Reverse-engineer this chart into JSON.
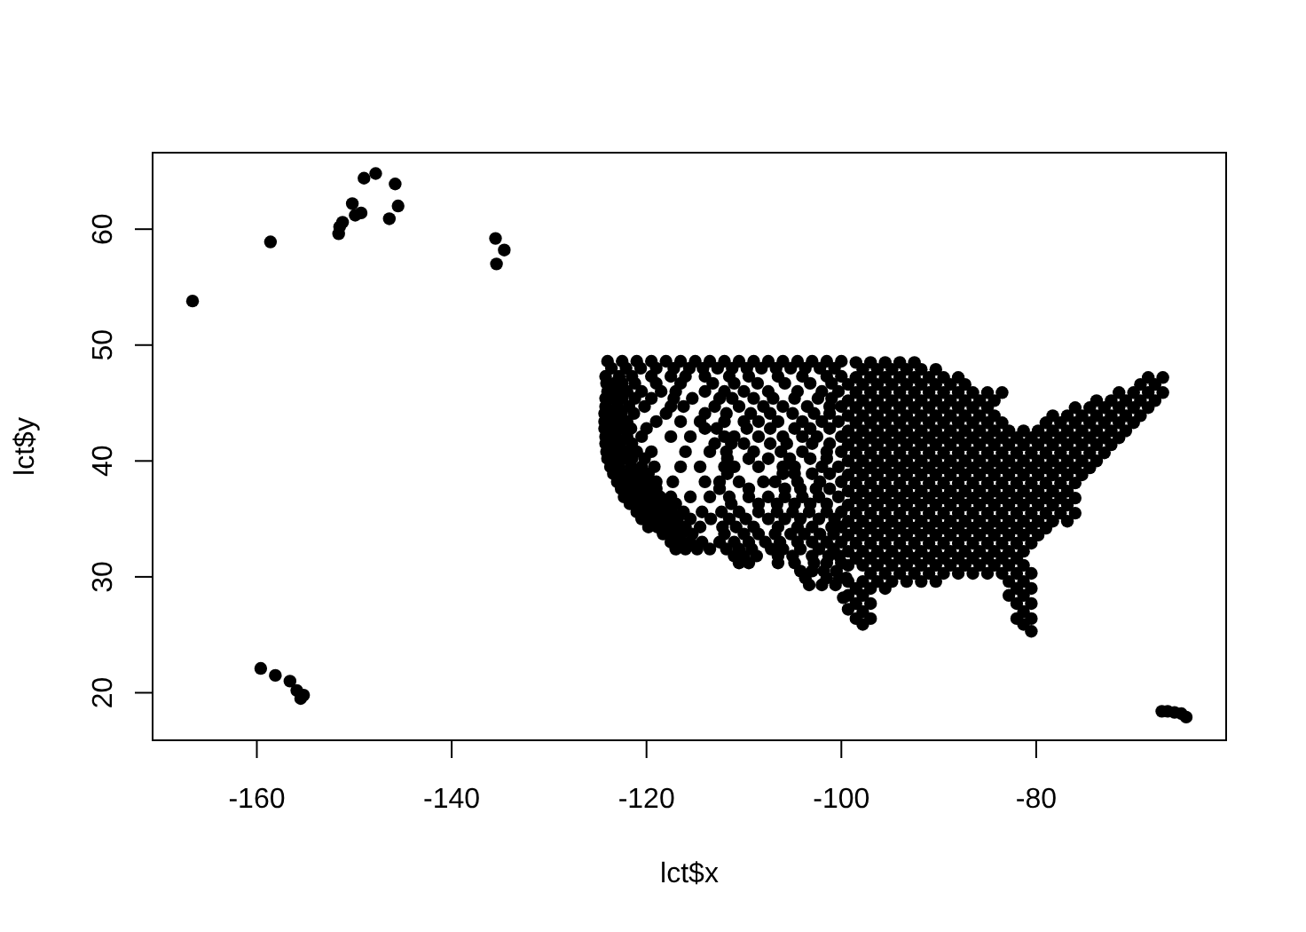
{
  "chart_data": {
    "type": "scatter",
    "xlabel": "lct$x",
    "ylabel": "lct$y",
    "xlim": [
      -170.7,
      -60.5
    ],
    "ylim": [
      15.9,
      66.6
    ],
    "xticks": [
      -160,
      -140,
      -120,
      -100,
      -80
    ],
    "yticks": [
      20,
      30,
      40,
      50,
      60
    ],
    "color": "#000000",
    "marker": "circle",
    "x": [
      -166.6,
      -158.6,
      -151.6,
      -151.5,
      -151.2,
      -150.2,
      -149.9,
      -149.3,
      -149.0,
      -147.8,
      -145.8,
      -145.5,
      -146.4,
      -135.5,
      -134.6,
      -135.4,
      -159.6,
      -158.1,
      -156.6,
      -155.9,
      -155.5,
      -155.2,
      -67.1,
      -66.5,
      -65.8,
      -65.1,
      -64.6,
      -124,
      -122.5,
      -121,
      -119.5,
      -118,
      -116.5,
      -115,
      -113.5,
      -112,
      -110.5,
      -109,
      -107.5,
      -106,
      -104.5,
      -103,
      -101.5,
      -100,
      -124.2,
      -122.8,
      -121.5,
      -119.5,
      -117.5,
      -116,
      -114,
      -111.5,
      -109.5,
      -106.5,
      -104,
      -101.5,
      -100,
      -124,
      -123,
      -122,
      -120.5,
      -118.5,
      -117,
      -114,
      -112,
      -110,
      -107.5,
      -104.5,
      -102,
      -100.3,
      -124.2,
      -123,
      -121.8,
      -120.2,
      -117.5,
      -116.2,
      -113,
      -110.5,
      -108,
      -106,
      -103.5,
      -101.2,
      -100,
      -124.3,
      -123.2,
      -122,
      -119,
      -116.5,
      -114.5,
      -112,
      -110,
      -108.5,
      -106.5,
      -104,
      -102,
      -100.3,
      -124.2,
      -123.2,
      -122,
      -120.5,
      -117.5,
      -115.5,
      -112,
      -111,
      -108.5,
      -106,
      -104,
      -102.5,
      -100,
      -124.1,
      -123.2,
      -122.2,
      -121,
      -119.5,
      -116,
      -113.5,
      -111.8,
      -109,
      -106.2,
      -104,
      -101.5,
      -100,
      -123.7,
      -122.8,
      -121.6,
      -120.5,
      -119.2,
      -116.5,
      -114.5,
      -112,
      -111,
      -108.5,
      -106,
      -104.8,
      -102,
      -100.3,
      -123,
      -122.1,
      -121.2,
      -120.2,
      -119,
      -117.3,
      -114,
      -112.5,
      -110.5,
      -108,
      -106.8,
      -104.5,
      -102.2,
      -100,
      -122.3,
      -121.4,
      -120.5,
      -119.6,
      -118.6,
      -117.5,
      -115.5,
      -113.5,
      -111.5,
      -109.5,
      -107.5,
      -105.8,
      -104,
      -102.3,
      -100.3,
      -121,
      -120.2,
      -119.3,
      -118.4,
      -117.4,
      -116.2,
      -114.3,
      -112.3,
      -110.5,
      -108.5,
      -106.6,
      -105,
      -103.3,
      -101.5,
      -100,
      -119.8,
      -118.9,
      -118,
      -117,
      -116,
      -114.5,
      -112.2,
      -110.8,
      -109,
      -106.5,
      -104.5,
      -103,
      -101,
      -100,
      -117.5,
      -116.5,
      -115.5,
      -114.3,
      -112.5,
      -111,
      -109.5,
      -107.8,
      -106.3,
      -104.5,
      -103,
      -101.5,
      -100,
      -111,
      -110,
      -108.7,
      -106.5,
      -105,
      -103,
      -101.3,
      -100.2,
      -104.2,
      -103,
      -101.8,
      -100.5,
      -103.3,
      -102,
      -100.6,
      -99.8,
      -99.3,
      -123.6,
      -122.1,
      -120.6,
      -119.0,
      -117.2,
      -115.6,
      -114.2,
      -112.7,
      -111.2,
      -109.7,
      -108.2,
      -106.7,
      -105.2,
      -103.7,
      -102.2,
      -100.7,
      -124.1,
      -123.3,
      -122.5,
      -121.2,
      -119.0,
      -116.5,
      -113.2,
      -111,
      -108.6,
      -105.8,
      -103.2,
      -101,
      -124.2,
      -123.4,
      -122.5,
      -121.2,
      -119.5,
      -117.2,
      -115.3,
      -112.5,
      -111.2,
      -109,
      -107,
      -104.8,
      -102.4,
      -101,
      -124.3,
      -123.5,
      -122.6,
      -121.3,
      -118,
      -114,
      -111.8,
      -109.3,
      -107.3,
      -105,
      -102.8,
      -101.2,
      -124.3,
      -123.6,
      -122.7,
      -121.6,
      -120,
      -114,
      -112.8,
      -109.7,
      -107.3,
      -104.8,
      -103.2,
      -101.2,
      -124.2,
      -123.6,
      -122.7,
      -121.5,
      -113,
      -111.3,
      -110,
      -107.3,
      -105.6,
      -103,
      -101.2,
      -124,
      -123.3,
      -122.4,
      -121.5,
      -120.2,
      -111.7,
      -109.5,
      -107.5,
      -105.3,
      -103.2,
      -101.5,
      -123.4,
      -122.5,
      -121.7,
      -120.8,
      -119.8,
      -111.7,
      -106,
      -104.8,
      -103,
      -101.2,
      -122.6,
      -121.8,
      -121,
      -120,
      -119,
      -112.5,
      -109.5,
      -105.8,
      -104.2,
      -102.6,
      -101.2,
      -121.7,
      -120.9,
      -120,
      -119,
      -118.1,
      -117,
      -111.3,
      -108.5,
      -106.6,
      -104.8,
      -103.2,
      -101.5,
      -120.5,
      -119.7,
      -118.8,
      -117.8,
      -116.8,
      -115.5,
      -113.4,
      -111.5,
      -109.8,
      -107.5,
      -105.8,
      -104.2,
      -102.3,
      -100.7,
      -118.3,
      -117.4,
      -116.4,
      -115.3,
      -112,
      -110,
      -108.5,
      -106.8,
      -105.2,
      -103.8,
      -102.2,
      -100.8,
      -117,
      -116,
      -114.8,
      -113.5,
      -111.8,
      -110.5,
      -109.2,
      -107.2,
      -106,
      -104.2,
      -102.3,
      -100.8,
      -110.5,
      -109.5,
      -106.5,
      -104.8,
      -102.8,
      -101.5,
      -100,
      -103.7,
      -101.5,
      -100.2,
      -99.5,
      -98.5,
      -97,
      -95.5,
      -94,
      -92.5,
      -97.8,
      -96.3,
      -94.8,
      -93.3,
      -91.8,
      -90.3,
      -98.5,
      -97,
      -95.5,
      -94,
      -92.5,
      -91,
      -89.5,
      -88,
      -68.5,
      -67,
      -99.3,
      -97.8,
      -96.3,
      -94.8,
      -93.3,
      -91.8,
      -90.3,
      -88.8,
      -87.3,
      -69.3,
      -67.8,
      -98.5,
      -97,
      -95.5,
      -94,
      -92.5,
      -91,
      -89.5,
      -88,
      -86.5,
      -85,
      -83.5,
      -71.5,
      -70,
      -68.5,
      -67,
      -99.3,
      -97.8,
      -96.3,
      -94.8,
      -93.3,
      -91.8,
      -90.3,
      -88.8,
      -87.3,
      -85.8,
      -84.3,
      -73.8,
      -72.3,
      -70.8,
      -69.3,
      -67.8,
      -98.5,
      -97,
      -95.5,
      -94,
      -92.5,
      -91,
      -89.5,
      -88,
      -86.5,
      -85,
      -76,
      -74.5,
      -73,
      -71.5,
      -70,
      -68.5,
      -99.3,
      -97.8,
      -96.3,
      -94.8,
      -93.3,
      -91.8,
      -90.3,
      -88.8,
      -87.3,
      -85.8,
      -84.3,
      -78.3,
      -76.8,
      -75.3,
      -73.8,
      -72.3,
      -70.8,
      -69.3,
      -98.5,
      -97,
      -95.5,
      -94,
      -92.5,
      -91,
      -89.5,
      -88,
      -86.5,
      -85,
      -83.5,
      -79,
      -77.5,
      -76,
      -74.5,
      -73,
      -71.5,
      -70,
      -99.3,
      -97.8,
      -96.3,
      -94.8,
      -93.3,
      -91.8,
      -90.3,
      -88.8,
      -87.3,
      -85.8,
      -84.3,
      -82.8,
      -81.3,
      -79.8,
      -78.3,
      -76.8,
      -75.3,
      -73.8,
      -72.3,
      -70.8,
      -98.5,
      -97,
      -95.5,
      -94,
      -92.5,
      -91,
      -89.5,
      -88,
      -86.5,
      -85,
      -83.5,
      -82,
      -80.5,
      -79,
      -77.5,
      -76,
      -74.5,
      -73,
      -71.5,
      -99.3,
      -97.8,
      -96.3,
      -94.8,
      -93.3,
      -91.8,
      -90.3,
      -88.8,
      -87.3,
      -85.8,
      -84.3,
      -82.8,
      -81.3,
      -79.8,
      -78.3,
      -76.8,
      -75.3,
      -73.8,
      -72.3,
      -98.5,
      -97,
      -95.5,
      -94,
      -92.5,
      -91,
      -89.5,
      -88,
      -86.5,
      -85,
      -83.5,
      -82,
      -80.5,
      -79,
      -77.5,
      -76,
      -74.5,
      -73,
      -99.3,
      -97.8,
      -96.3,
      -94.8,
      -93.3,
      -91.8,
      -90.3,
      -88.8,
      -87.3,
      -85.8,
      -84.3,
      -82.8,
      -81.3,
      -79.8,
      -78.3,
      -76.8,
      -75.3,
      -73.8,
      -98.5,
      -97,
      -95.5,
      -94,
      -92.5,
      -91,
      -89.5,
      -88,
      -86.5,
      -85,
      -83.5,
      -82,
      -80.5,
      -79,
      -77.5,
      -76,
      -74.5,
      -99.3,
      -97.8,
      -96.3,
      -94.8,
      -93.3,
      -91.8,
      -90.3,
      -88.8,
      -87.3,
      -85.8,
      -84.3,
      -82.8,
      -81.3,
      -79.8,
      -78.3,
      -76.8,
      -75.3,
      -98.5,
      -97,
      -95.5,
      -94,
      -92.5,
      -91,
      -89.5,
      -88,
      -86.5,
      -85,
      -83.5,
      -82,
      -80.5,
      -79,
      -77.5,
      -76,
      -99.3,
      -97.8,
      -96.3,
      -94.8,
      -93.3,
      -91.8,
      -90.3,
      -88.8,
      -87.3,
      -85.8,
      -84.3,
      -82.8,
      -81.3,
      -79.8,
      -78.3,
      -76.8,
      -98.5,
      -97,
      -95.5,
      -94,
      -92.5,
      -91,
      -89.5,
      -88,
      -86.5,
      -85,
      -83.5,
      -82,
      -80.5,
      -79,
      -77.5,
      -76,
      -99.3,
      -97.8,
      -96.3,
      -94.8,
      -93.3,
      -91.8,
      -90.3,
      -88.8,
      -87.3,
      -85.8,
      -84.3,
      -82.8,
      -81.3,
      -79.8,
      -78.3,
      -76.8,
      -98.5,
      -97,
      -95.5,
      -94,
      -92.5,
      -91,
      -89.5,
      -88,
      -86.5,
      -85,
      -83.5,
      -82,
      -80.5,
      -79,
      -77.5,
      -76,
      -99.3,
      -97.8,
      -96.3,
      -94.8,
      -93.3,
      -91.8,
      -90.3,
      -88.8,
      -87.3,
      -85.8,
      -84.3,
      -82.8,
      -81.3,
      -79.8,
      -78.3,
      -76.8,
      -98.5,
      -97,
      -95.5,
      -94,
      -92.5,
      -91,
      -89.5,
      -88,
      -86.5,
      -85,
      -83.5,
      -82,
      -80.5,
      -79,
      -99.3,
      -97.8,
      -96.3,
      -94.8,
      -93.3,
      -91.8,
      -90.3,
      -88.8,
      -87.3,
      -85.8,
      -84.3,
      -82.8,
      -81.3,
      -79.8,
      -98.5,
      -97,
      -95.5,
      -94,
      -92.5,
      -91,
      -89.5,
      -88,
      -86.5,
      -85,
      -83.5,
      -82,
      -80.5,
      -99.3,
      -97.8,
      -96.3,
      -94.8,
      -93.3,
      -91.8,
      -90.3,
      -88.8,
      -87.3,
      -85.8,
      -84.3,
      -82.8,
      -81.3,
      -98.5,
      -97,
      -95.5,
      -94,
      -92.5,
      -91,
      -89.5,
      -88,
      -86.5,
      -85,
      -83.5,
      -82,
      -99.3,
      -97.8,
      -96.3,
      -94.8,
      -93.3,
      -91.8,
      -90.3,
      -88.8,
      -87.3,
      -85.8,
      -84.3,
      -82.8,
      -81.3,
      -97,
      -95.5,
      -94,
      -92.5,
      -91,
      -89.5,
      -88,
      -86.5,
      -85,
      -83.5,
      -82,
      -80.5,
      -99.3,
      -97.8,
      -96.3,
      -94.8,
      -93.3,
      -91.8,
      -90.3,
      -82.8,
      -81.3,
      -98.5,
      -97,
      -95.5,
      -82,
      -80.5,
      -99.3,
      -97.8,
      -82.8,
      -81.3,
      -98.5,
      -97,
      -82,
      -80.5,
      -97.8,
      -81.3,
      -98.5,
      -97,
      -82,
      -80.5,
      -97.8,
      -81.3,
      -80.5
    ],
    "values": [
      53.8,
      58.9,
      59.6,
      60.2,
      60.6,
      62.2,
      61.2,
      61.4,
      64.4,
      64.8,
      63.9,
      62.0,
      60.9,
      59.2,
      58.2,
      57.0,
      22.1,
      21.5,
      21.0,
      20.2,
      19.5,
      19.8,
      18.4,
      18.4,
      18.3,
      18.2,
      17.9,
      48.6,
      48.6,
      48.6,
      48.6,
      48.6,
      48.6,
      48.6,
      48.6,
      48.6,
      48.6,
      48.6,
      48.6,
      48.6,
      48.6,
      48.6,
      48.6,
      48.6,
      47.3,
      47.3,
      47.3,
      47.3,
      47.3,
      47.3,
      47.3,
      47.3,
      47.3,
      47.3,
      47.3,
      47.3,
      47.3,
      46.0,
      46.0,
      46.0,
      46.0,
      46.0,
      46.0,
      46.0,
      46.0,
      46.0,
      46.0,
      46.0,
      46.0,
      46.0,
      44.7,
      44.7,
      44.7,
      44.7,
      44.7,
      44.7,
      44.7,
      44.7,
      44.7,
      44.7,
      44.7,
      44.7,
      44.7,
      43.4,
      43.4,
      43.4,
      43.4,
      43.4,
      43.4,
      43.4,
      43.4,
      43.4,
      43.4,
      43.4,
      43.4,
      43.4,
      42.1,
      42.1,
      42.1,
      42.1,
      42.1,
      42.1,
      42.1,
      42.1,
      42.1,
      42.1,
      42.1,
      42.1,
      42.1,
      40.8,
      40.8,
      40.8,
      40.8,
      40.8,
      40.8,
      40.8,
      40.8,
      40.8,
      40.8,
      40.8,
      40.8,
      40.8,
      39.5,
      39.5,
      39.5,
      39.5,
      39.5,
      39.5,
      39.5,
      39.5,
      39.5,
      39.5,
      39.5,
      39.5,
      39.5,
      39.5,
      38.2,
      38.2,
      38.2,
      38.2,
      38.2,
      38.2,
      38.2,
      38.2,
      38.2,
      38.2,
      38.2,
      38.2,
      38.2,
      38.2,
      36.9,
      36.9,
      36.9,
      36.9,
      36.9,
      36.9,
      36.9,
      36.9,
      36.9,
      36.9,
      36.9,
      36.9,
      36.9,
      36.9,
      36.9,
      35.6,
      35.6,
      35.6,
      35.6,
      35.6,
      35.6,
      35.6,
      35.6,
      35.6,
      35.6,
      35.6,
      35.6,
      35.6,
      35.6,
      35.6,
      34.3,
      34.3,
      34.3,
      34.3,
      34.3,
      34.3,
      34.3,
      34.3,
      34.3,
      34.3,
      34.3,
      34.3,
      34.3,
      34.3,
      33.0,
      33.0,
      33.0,
      33.0,
      33.0,
      33.0,
      33.0,
      33.0,
      33.0,
      33.0,
      33.0,
      33.0,
      33.0,
      31.8,
      31.8,
      31.8,
      31.8,
      31.8,
      31.8,
      31.8,
      31.8,
      30.5,
      30.5,
      30.5,
      30.5,
      29.3,
      29.3,
      29.3,
      28.2,
      27.2,
      48.0,
      48.0,
      48.0,
      48.0,
      48.0,
      48.0,
      48.0,
      48.0,
      48.0,
      48.0,
      48.0,
      48.0,
      48.0,
      48.0,
      48.0,
      48.0,
      46.7,
      46.7,
      46.7,
      46.7,
      46.7,
      46.7,
      46.7,
      46.7,
      46.7,
      46.7,
      46.7,
      46.7,
      45.4,
      45.4,
      45.4,
      45.4,
      45.4,
      45.4,
      45.4,
      45.4,
      45.4,
      45.4,
      45.4,
      45.4,
      45.4,
      45.4,
      44.1,
      44.1,
      44.1,
      44.1,
      44.1,
      44.1,
      44.1,
      44.1,
      44.1,
      44.1,
      44.1,
      44.1,
      42.8,
      42.8,
      42.8,
      42.8,
      42.8,
      42.8,
      42.8,
      42.8,
      42.8,
      42.8,
      42.8,
      42.8,
      41.5,
      41.5,
      41.5,
      41.5,
      41.5,
      41.5,
      41.5,
      41.5,
      41.5,
      41.5,
      41.5,
      40.2,
      40.2,
      40.2,
      40.2,
      40.2,
      40.2,
      40.2,
      40.2,
      40.2,
      40.2,
      40.2,
      38.9,
      38.9,
      38.9,
      38.9,
      38.9,
      38.9,
      38.9,
      38.9,
      38.9,
      38.9,
      37.6,
      37.6,
      37.6,
      37.6,
      37.6,
      37.6,
      37.6,
      37.6,
      37.6,
      37.6,
      37.6,
      36.3,
      36.3,
      36.3,
      36.3,
      36.3,
      36.3,
      36.3,
      36.3,
      36.3,
      36.3,
      36.3,
      36.3,
      35.0,
      35.0,
      35.0,
      35.0,
      35.0,
      35.0,
      35.0,
      35.0,
      35.0,
      35.0,
      35.0,
      35.0,
      35.0,
      35.0,
      33.7,
      33.7,
      33.7,
      33.7,
      33.7,
      33.7,
      33.7,
      33.7,
      33.7,
      33.7,
      33.7,
      33.7,
      32.4,
      32.4,
      32.4,
      32.4,
      32.4,
      32.4,
      32.4,
      32.4,
      32.4,
      32.4,
      32.4,
      32.4,
      31.2,
      31.2,
      31.2,
      31.2,
      31.2,
      31.2,
      31.2,
      29.9,
      29.9,
      29.9,
      29.9,
      48.5,
      48.5,
      48.5,
      48.5,
      48.5,
      47.9,
      47.9,
      47.9,
      47.9,
      47.9,
      47.9,
      47.2,
      47.2,
      47.2,
      47.2,
      47.2,
      47.2,
      47.2,
      47.2,
      47.2,
      47.2,
      46.6,
      46.6,
      46.6,
      46.6,
      46.6,
      46.6,
      46.6,
      46.6,
      46.6,
      46.6,
      46.6,
      45.9,
      45.9,
      45.9,
      45.9,
      45.9,
      45.9,
      45.9,
      45.9,
      45.9,
      45.9,
      45.9,
      45.9,
      45.9,
      45.9,
      45.9,
      45.2,
      45.2,
      45.2,
      45.2,
      45.2,
      45.2,
      45.2,
      45.2,
      45.2,
      45.2,
      45.2,
      45.2,
      45.2,
      45.2,
      45.2,
      45.2,
      44.6,
      44.6,
      44.6,
      44.6,
      44.6,
      44.6,
      44.6,
      44.6,
      44.6,
      44.6,
      44.6,
      44.6,
      44.6,
      44.6,
      44.6,
      44.6,
      43.9,
      43.9,
      43.9,
      43.9,
      43.9,
      43.9,
      43.9,
      43.9,
      43.9,
      43.9,
      43.9,
      43.9,
      43.9,
      43.9,
      43.9,
      43.9,
      43.9,
      43.9,
      43.3,
      43.3,
      43.3,
      43.3,
      43.3,
      43.3,
      43.3,
      43.3,
      43.3,
      43.3,
      43.3,
      43.3,
      43.3,
      43.3,
      43.3,
      43.3,
      43.3,
      43.3,
      42.6,
      42.6,
      42.6,
      42.6,
      42.6,
      42.6,
      42.6,
      42.6,
      42.6,
      42.6,
      42.6,
      42.6,
      42.6,
      42.6,
      42.6,
      42.6,
      42.6,
      42.6,
      42.6,
      42.6,
      42.0,
      42.0,
      42.0,
      42.0,
      42.0,
      42.0,
      42.0,
      42.0,
      42.0,
      42.0,
      42.0,
      42.0,
      42.0,
      42.0,
      42.0,
      42.0,
      42.0,
      42.0,
      42.0,
      41.4,
      41.4,
      41.4,
      41.4,
      41.4,
      41.4,
      41.4,
      41.4,
      41.4,
      41.4,
      41.4,
      41.4,
      41.4,
      41.4,
      41.4,
      41.4,
      41.4,
      41.4,
      41.4,
      40.7,
      40.7,
      40.7,
      40.7,
      40.7,
      40.7,
      40.7,
      40.7,
      40.7,
      40.7,
      40.7,
      40.7,
      40.7,
      40.7,
      40.7,
      40.7,
      40.7,
      40.7,
      40.0,
      40.0,
      40.0,
      40.0,
      40.0,
      40.0,
      40.0,
      40.0,
      40.0,
      40.0,
      40.0,
      40.0,
      40.0,
      40.0,
      40.0,
      40.0,
      40.0,
      40.0,
      39.4,
      39.4,
      39.4,
      39.4,
      39.4,
      39.4,
      39.4,
      39.4,
      39.4,
      39.4,
      39.4,
      39.4,
      39.4,
      39.4,
      39.4,
      39.4,
      39.4,
      38.8,
      38.8,
      38.8,
      38.8,
      38.8,
      38.8,
      38.8,
      38.8,
      38.8,
      38.8,
      38.8,
      38.8,
      38.8,
      38.8,
      38.8,
      38.8,
      38.8,
      38.1,
      38.1,
      38.1,
      38.1,
      38.1,
      38.1,
      38.1,
      38.1,
      38.1,
      38.1,
      38.1,
      38.1,
      38.1,
      38.1,
      38.1,
      38.1,
      37.4,
      37.4,
      37.4,
      37.4,
      37.4,
      37.4,
      37.4,
      37.4,
      37.4,
      37.4,
      37.4,
      37.4,
      37.4,
      37.4,
      37.4,
      37.4,
      36.8,
      36.8,
      36.8,
      36.8,
      36.8,
      36.8,
      36.8,
      36.8,
      36.8,
      36.8,
      36.8,
      36.8,
      36.8,
      36.8,
      36.8,
      36.8,
      36.2,
      36.2,
      36.2,
      36.2,
      36.2,
      36.2,
      36.2,
      36.2,
      36.2,
      36.2,
      36.2,
      36.2,
      36.2,
      36.2,
      36.2,
      36.2,
      35.5,
      35.5,
      35.5,
      35.5,
      35.5,
      35.5,
      35.5,
      35.5,
      35.5,
      35.5,
      35.5,
      35.5,
      35.5,
      35.5,
      35.5,
      35.5,
      34.8,
      34.8,
      34.8,
      34.8,
      34.8,
      34.8,
      34.8,
      34.8,
      34.8,
      34.8,
      34.8,
      34.8,
      34.8,
      34.8,
      34.8,
      34.8,
      34.2,
      34.2,
      34.2,
      34.2,
      34.2,
      34.2,
      34.2,
      34.2,
      34.2,
      34.2,
      34.2,
      34.2,
      34.2,
      34.2,
      33.6,
      33.6,
      33.6,
      33.6,
      33.6,
      33.6,
      33.6,
      33.6,
      33.6,
      33.6,
      33.6,
      33.6,
      33.6,
      33.6,
      32.9,
      32.9,
      32.9,
      32.9,
      32.9,
      32.9,
      32.9,
      32.9,
      32.9,
      32.9,
      32.9,
      32.9,
      32.9,
      32.2,
      32.2,
      32.2,
      32.2,
      32.2,
      32.2,
      32.2,
      32.2,
      32.2,
      32.2,
      32.2,
      32.2,
      32.2,
      31.6,
      31.6,
      31.6,
      31.6,
      31.6,
      31.6,
      31.6,
      31.6,
      31.6,
      31.6,
      31.6,
      31.6,
      31.0,
      31.0,
      31.0,
      31.0,
      31.0,
      31.0,
      31.0,
      31.0,
      31.0,
      31.0,
      31.0,
      31.0,
      31.0,
      30.3,
      30.3,
      30.3,
      30.3,
      30.3,
      30.3,
      30.3,
      30.3,
      30.3,
      30.3,
      30.3,
      30.3,
      29.6,
      29.6,
      29.6,
      29.6,
      29.6,
      29.6,
      29.6,
      29.6,
      29.6,
      29.0,
      29.0,
      29.0,
      29.0,
      29.0,
      28.4,
      28.4,
      28.4,
      28.4,
      27.7,
      27.7,
      27.7,
      27.7,
      27.0,
      27.0,
      26.4,
      26.4,
      26.4,
      26.4,
      25.9,
      25.9,
      25.3
    ]
  }
}
